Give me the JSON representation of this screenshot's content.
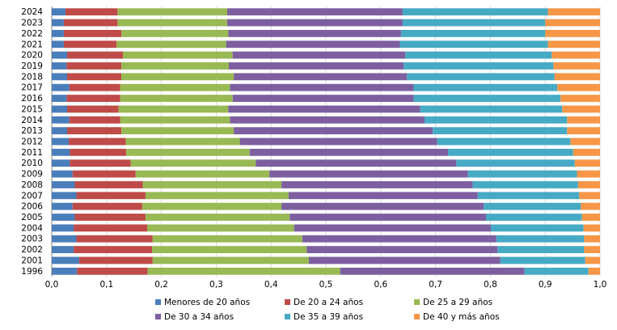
{
  "chart_data": {
    "type": "bar",
    "orientation": "horizontal",
    "stacked": true,
    "normalized": true,
    "title": "",
    "xlabel": "",
    "ylabel": "",
    "xlim": [
      0,
      1.0
    ],
    "x_ticks": [
      "0,0",
      "0,1",
      "0,2",
      "0,3",
      "0,4",
      "0,5",
      "0,6",
      "0,7",
      "0,8",
      "0,9",
      "1,0"
    ],
    "grid": "vertical",
    "legend_position": "bottom",
    "categories": [
      "2024",
      "2023",
      "2022",
      "2021",
      "2020",
      "2019",
      "2018",
      "2017",
      "2016",
      "2015",
      "2014",
      "2013",
      "2012",
      "2011",
      "2010",
      "2009",
      "2008",
      "2007",
      "2006",
      "2005",
      "2004",
      "2003",
      "2002",
      "2001",
      "1996"
    ],
    "series": [
      {
        "name": "Menores de 20 años",
        "color": "#4a7ebb",
        "values": [
          0.025,
          0.022,
          0.022,
          0.022,
          0.028,
          0.027,
          0.028,
          0.032,
          0.027,
          0.028,
          0.032,
          0.028,
          0.031,
          0.033,
          0.033,
          0.038,
          0.042,
          0.045,
          0.038,
          0.042,
          0.04,
          0.045,
          0.04,
          0.05,
          0.046
        ]
      },
      {
        "name": "De 20 a 24 años",
        "color": "#be4b48",
        "values": [
          0.095,
          0.098,
          0.105,
          0.096,
          0.102,
          0.1,
          0.099,
          0.093,
          0.098,
          0.094,
          0.093,
          0.099,
          0.104,
          0.103,
          0.111,
          0.115,
          0.124,
          0.126,
          0.127,
          0.129,
          0.134,
          0.139,
          0.143,
          0.134,
          0.129
        ]
      },
      {
        "name": "De 25 a 29 años",
        "color": "#98b954",
        "values": [
          0.2,
          0.2,
          0.195,
          0.2,
          0.2,
          0.196,
          0.205,
          0.2,
          0.205,
          0.2,
          0.2,
          0.205,
          0.208,
          0.225,
          0.228,
          0.244,
          0.253,
          0.261,
          0.254,
          0.263,
          0.268,
          0.273,
          0.282,
          0.285,
          0.351
        ]
      },
      {
        "name": "De 30 a 34 años",
        "color": "#7d5fa0",
        "values": [
          0.32,
          0.32,
          0.315,
          0.317,
          0.315,
          0.319,
          0.316,
          0.335,
          0.33,
          0.35,
          0.355,
          0.363,
          0.36,
          0.362,
          0.366,
          0.362,
          0.349,
          0.345,
          0.369,
          0.358,
          0.359,
          0.354,
          0.348,
          0.349,
          0.336
        ]
      },
      {
        "name": "De 35 a 39 años",
        "color": "#46aac5",
        "values": [
          0.265,
          0.26,
          0.263,
          0.27,
          0.267,
          0.273,
          0.269,
          0.262,
          0.268,
          0.259,
          0.26,
          0.245,
          0.243,
          0.228,
          0.216,
          0.199,
          0.192,
          0.185,
          0.177,
          0.175,
          0.169,
          0.16,
          0.158,
          0.155,
          0.117
        ]
      },
      {
        "name": "De 40 y más años",
        "color": "#f79646",
        "values": [
          0.095,
          0.1,
          0.1,
          0.095,
          0.088,
          0.085,
          0.083,
          0.078,
          0.072,
          0.069,
          0.06,
          0.06,
          0.054,
          0.049,
          0.046,
          0.042,
          0.04,
          0.038,
          0.035,
          0.033,
          0.03,
          0.029,
          0.029,
          0.027,
          0.021
        ]
      }
    ]
  }
}
